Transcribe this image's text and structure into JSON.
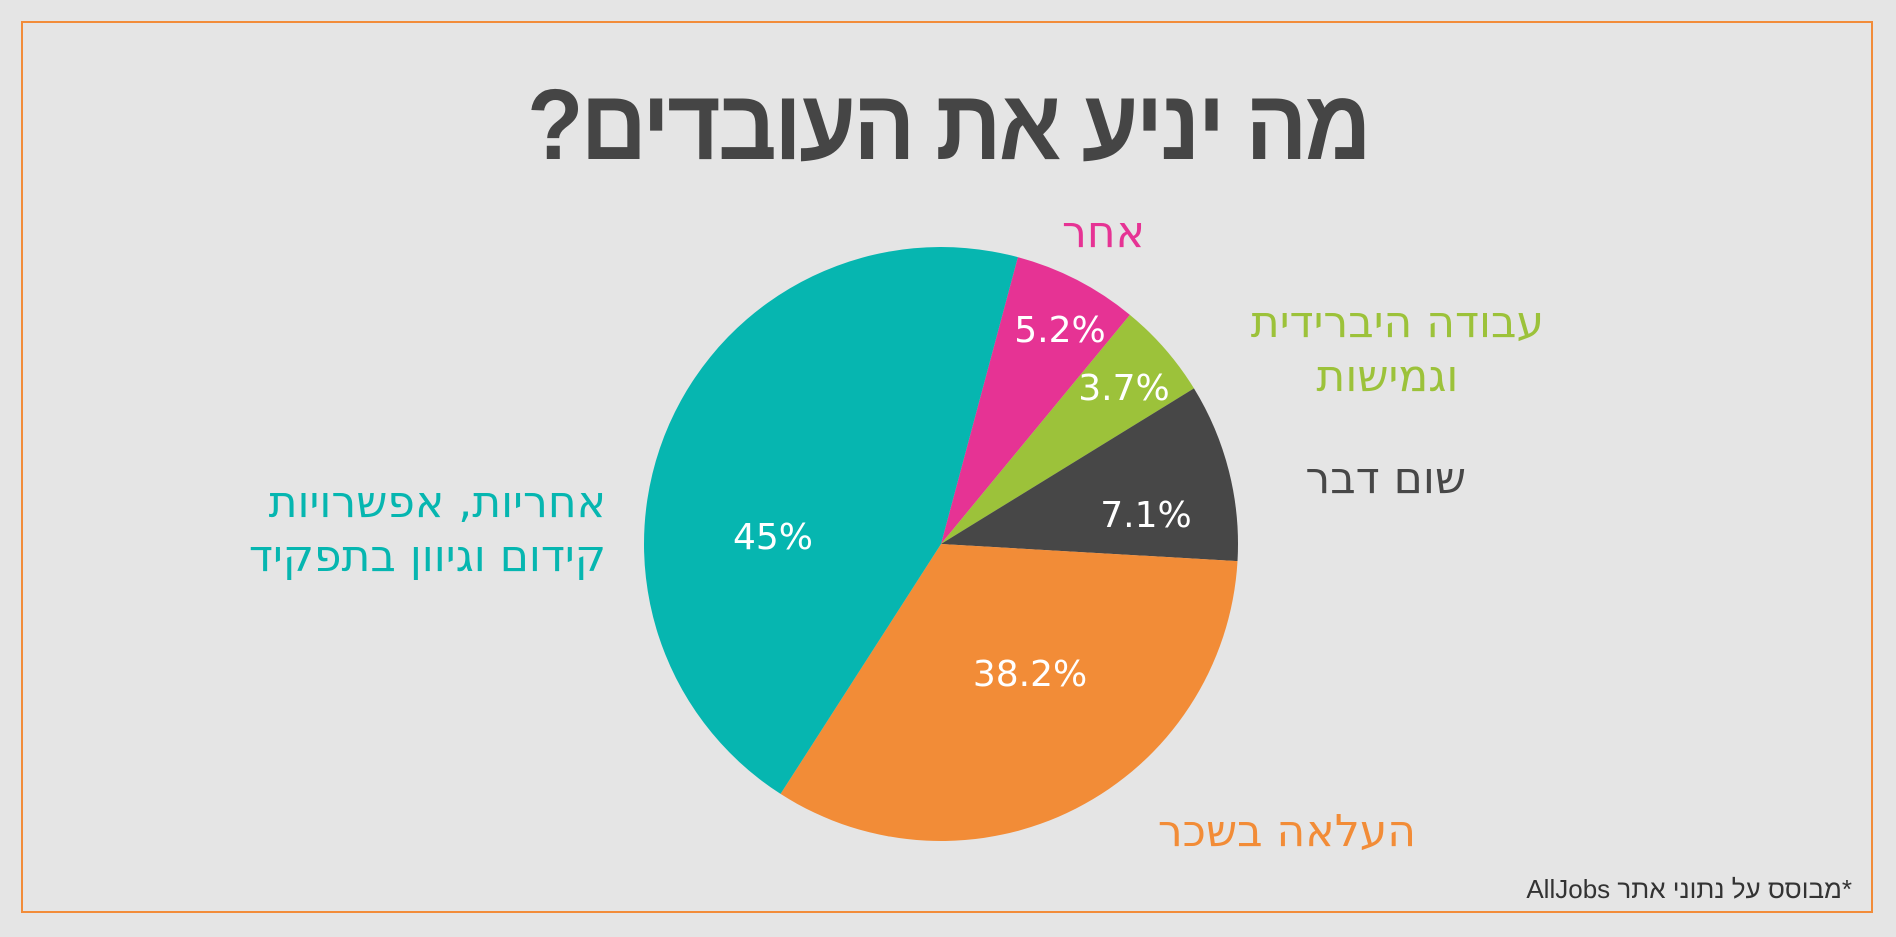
{
  "title": "מה יניע את העובדים?",
  "footnote": "*מבוסס על נתוני אתר AllJobs",
  "colors": {
    "background": "#e5e5e5",
    "frame": "#f28c3a",
    "title": "#454545"
  },
  "chart_data": {
    "type": "pie",
    "title": "מה יניע את העובדים?",
    "center": [
      941,
      544
    ],
    "radius": 297,
    "slices": [
      {
        "label": "אחר",
        "value": 5.2,
        "display": "5.2%",
        "color": "#e63394",
        "start_deg": 15,
        "end_deg": 39.5
      },
      {
        "label": "עבודה היברידית וגמישות",
        "value": 3.7,
        "display": "3.7%",
        "color": "#9cc23a",
        "start_deg": 39.5,
        "end_deg": 58.4
      },
      {
        "label": "שום דבר",
        "value": 7.1,
        "display": "7.1%",
        "color": "#474747",
        "start_deg": 58.4,
        "end_deg": 93.3
      },
      {
        "label": "העלאה בשכר",
        "value": 38.2,
        "display": "38.2%",
        "color": "#f28c37",
        "start_deg": 93.3,
        "end_deg": 212.7
      },
      {
        "label": "אחריות, אפשרויות קידום וגיוון בתפקיד",
        "value": 45,
        "display": "45%",
        "color": "#06b6b0",
        "start_deg": 212.7,
        "end_deg": 375
      }
    ],
    "pct_positions": [
      [
        1060,
        332
      ],
      [
        1124,
        390
      ],
      [
        1146,
        517
      ],
      [
        1030,
        676
      ],
      [
        773,
        539
      ]
    ],
    "legend": "external labels"
  },
  "labels": {
    "other": {
      "lines": [
        "אחר"
      ],
      "color": "#e63394"
    },
    "hybrid": {
      "lines": [
        "עבודה היברידית",
        "וגמישות"
      ],
      "color": "#9cc23a"
    },
    "nothing": {
      "lines": [
        "שום דבר"
      ],
      "color": "#474747"
    },
    "raise": {
      "lines": [
        "העלאה בשכר"
      ],
      "color": "#f28c37"
    },
    "responsibility": {
      "lines": [
        "אחריות, אפשרויות",
        "קידום וגיוון בתפקיד"
      ],
      "color": "#06b6b0"
    }
  }
}
